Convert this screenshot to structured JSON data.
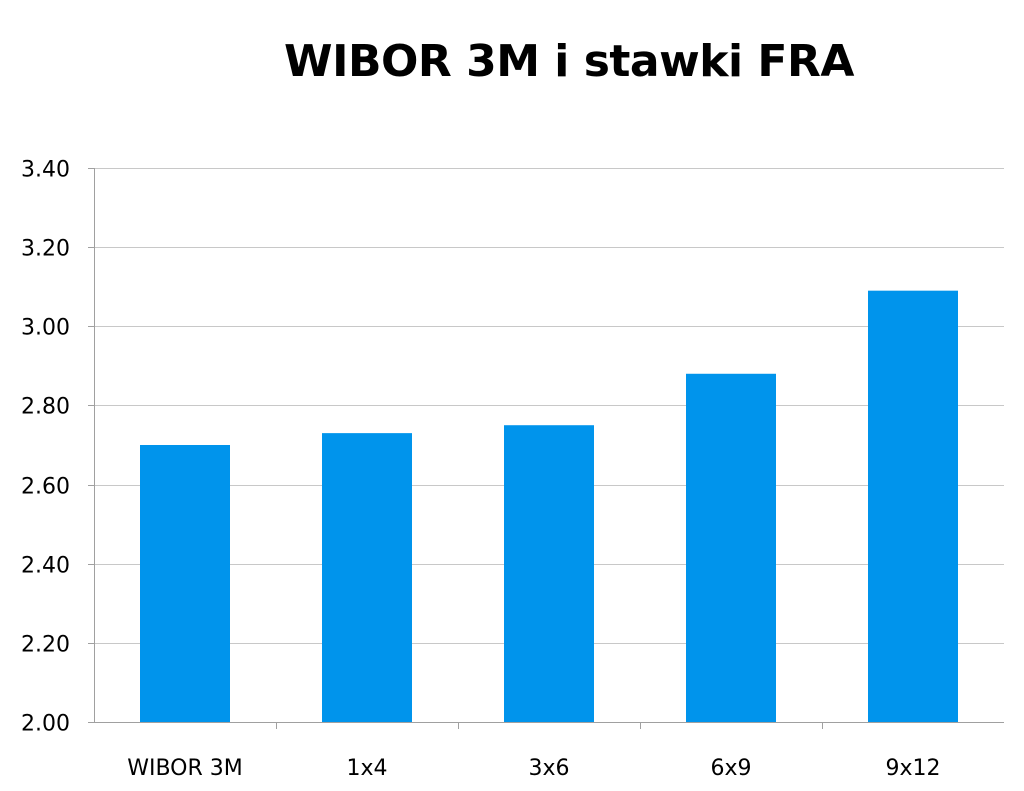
{
  "chart_data": {
    "type": "bar",
    "title": "WIBOR 3M i stawki FRA",
    "xlabel": "",
    "ylabel": "",
    "categories": [
      "WIBOR 3M",
      "1x4",
      "3x6",
      "6x9",
      "9x12"
    ],
    "values": [
      2.7,
      2.73,
      2.75,
      2.88,
      3.09
    ],
    "ylim": [
      2.0,
      3.4
    ],
    "yticks": [
      "2.00",
      "2.20",
      "2.40",
      "2.60",
      "2.80",
      "3.00",
      "3.20",
      "3.40"
    ],
    "grid": true,
    "legend": "none",
    "bar_color": "#0094EC",
    "grid_color": "#C8C8C8",
    "axis_color": "#A0A0A0"
  }
}
